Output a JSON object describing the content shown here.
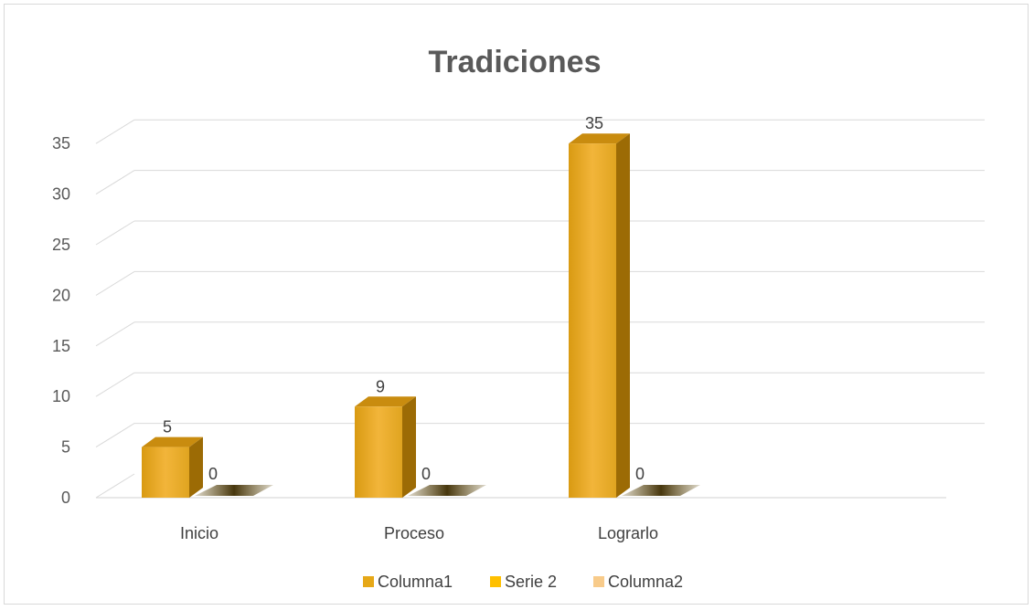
{
  "chart_data": {
    "type": "bar",
    "title": "Tradiciones",
    "categories": [
      "Inicio",
      "Proceso",
      "Lograrlo"
    ],
    "series": [
      {
        "name": "Columna1",
        "values": [
          5,
          9,
          35
        ],
        "color": "#e6a817"
      },
      {
        "name": "Serie 2",
        "values": [
          0,
          0,
          0
        ],
        "color": "#ffc000"
      },
      {
        "name": "Columna2",
        "values": [
          null,
          null,
          null
        ],
        "color": "#f8cb8a"
      }
    ],
    "ylim": [
      0,
      35
    ],
    "yticks": [
      0,
      5,
      10,
      15,
      20,
      25,
      30,
      35
    ],
    "grid": true,
    "legend_position": "bottom",
    "style": "3d-column"
  }
}
